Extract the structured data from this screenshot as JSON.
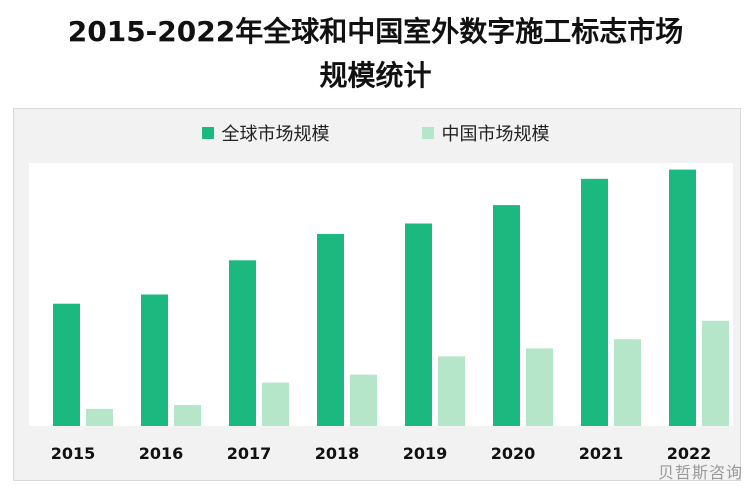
{
  "title_line1": "2015-2022年全球和中国室外数字施工标志市场",
  "title_line2": "规模统计",
  "watermark": "贝哲斯咨询",
  "colors": {
    "global": "#1bb97f",
    "china": "#b5e6c9",
    "plot_bg": "#ffffff",
    "panel_bg": "#f2f2f2"
  },
  "chart_data": {
    "type": "bar",
    "title": "2015-2022年全球和中国室外数字施工标志市场规模统计",
    "categories": [
      "2015",
      "2016",
      "2017",
      "2018",
      "2019",
      "2020",
      "2021",
      "2022"
    ],
    "series": [
      {
        "name": "全球市场规模",
        "values": [
          46.5,
          50,
          63,
          73,
          77,
          84,
          94,
          97.5
        ]
      },
      {
        "name": "中国市场规模",
        "values": [
          6.5,
          8,
          16.5,
          19.5,
          26.5,
          29.5,
          33,
          40
        ]
      }
    ],
    "ylim": [
      0,
      100
    ],
    "xlabel": "",
    "ylabel": "",
    "legend_position": "top",
    "grid": false
  }
}
